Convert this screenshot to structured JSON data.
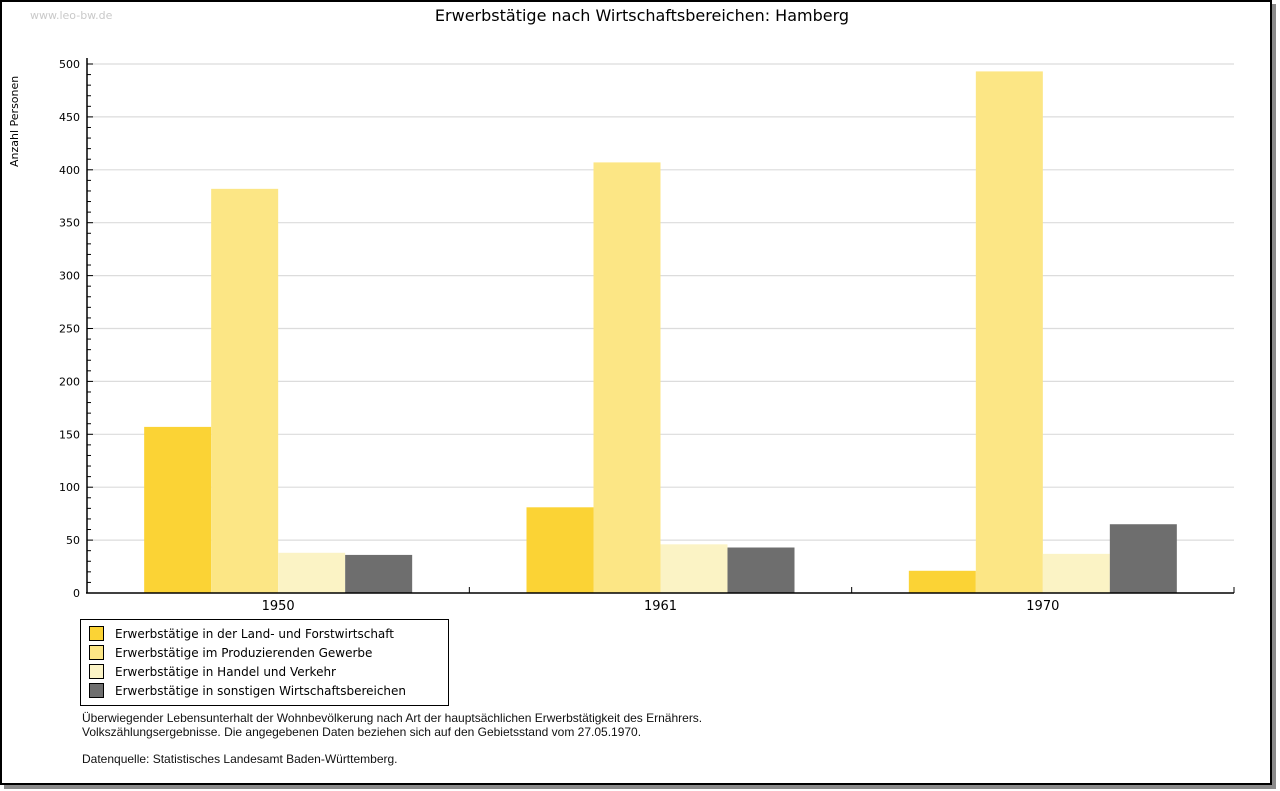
{
  "watermark": "www.leo-bw.de",
  "footer": {
    "line1": "Überwiegender Lebensunterhalt der Wohnbevölkerung nach Art der hauptsächlichen Erwerbstätigkeit des Ernährers.",
    "line2": "Volkszählungsergebnisse. Die angegebenen Daten beziehen sich auf den Gebietsstand vom 27.05.1970.",
    "line3": "Datenquelle: Statistisches Landesamt Baden-Württemberg."
  },
  "chart_data": {
    "type": "bar",
    "title": "Erwerbstätige nach Wirtschaftsbereichen: Hamberg",
    "ylabel": "Anzahl Personen",
    "xlabel": "",
    "categories": [
      "1950",
      "1961",
      "1970"
    ],
    "series": [
      {
        "name": "Erwerbstätige in der Land- und Forstwirtschaft",
        "color": "#FBD335",
        "values": [
          157,
          81,
          21
        ]
      },
      {
        "name": "Erwerbstätige im Produzierenden Gewerbe",
        "color": "#FCE685",
        "values": [
          382,
          407,
          493
        ]
      },
      {
        "name": "Erwerbstätige in Handel und Verkehr",
        "color": "#FBF3C5",
        "values": [
          38,
          46,
          37
        ]
      },
      {
        "name": "Erwerbstätige in sonstigen Wirtschaftsbereichen",
        "color": "#6E6E6E",
        "values": [
          36,
          43,
          65
        ]
      }
    ],
    "ylim": [
      0,
      500
    ],
    "ytick_step": 50,
    "yminor_step": 10,
    "grid": true,
    "gridline_color": "#DCDCDC",
    "axis_color": "#000000",
    "legend_position": "bottom-left"
  }
}
